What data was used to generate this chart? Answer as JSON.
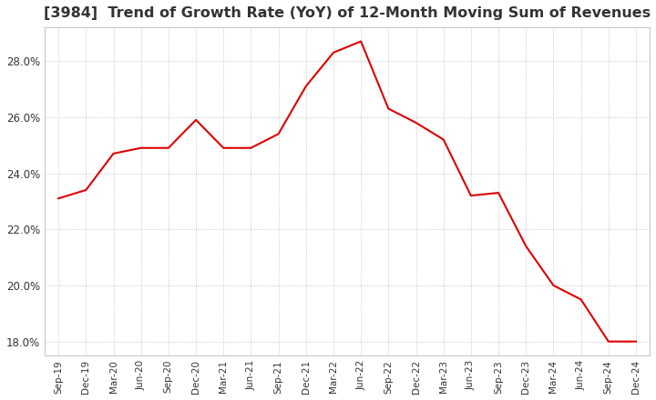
{
  "title": "[3984]  Trend of Growth Rate (YoY) of 12-Month Moving Sum of Revenues",
  "title_fontsize": 11.5,
  "line_color": "#dd0000",
  "background_color": "#ffffff",
  "grid_color": "#aaaaaa",
  "ylim": [
    0.175,
    0.292
  ],
  "yticks": [
    0.18,
    0.2,
    0.22,
    0.24,
    0.26,
    0.28
  ],
  "x_labels": [
    "Sep-19",
    "Dec-19",
    "Mar-20",
    "Jun-20",
    "Sep-20",
    "Dec-20",
    "Mar-21",
    "Jun-21",
    "Sep-21",
    "Dec-21",
    "Mar-22",
    "Jun-22",
    "Sep-22",
    "Dec-22",
    "Mar-23",
    "Jun-23",
    "Sep-23",
    "Dec-23",
    "Mar-24",
    "Jun-24",
    "Sep-24",
    "Dec-24"
  ],
  "values": [
    0.231,
    0.234,
    0.247,
    0.249,
    0.249,
    0.259,
    0.249,
    0.249,
    0.254,
    0.271,
    0.283,
    0.287,
    0.263,
    0.258,
    0.252,
    0.232,
    0.233,
    0.214,
    0.2,
    0.195,
    0.18,
    0.18
  ]
}
